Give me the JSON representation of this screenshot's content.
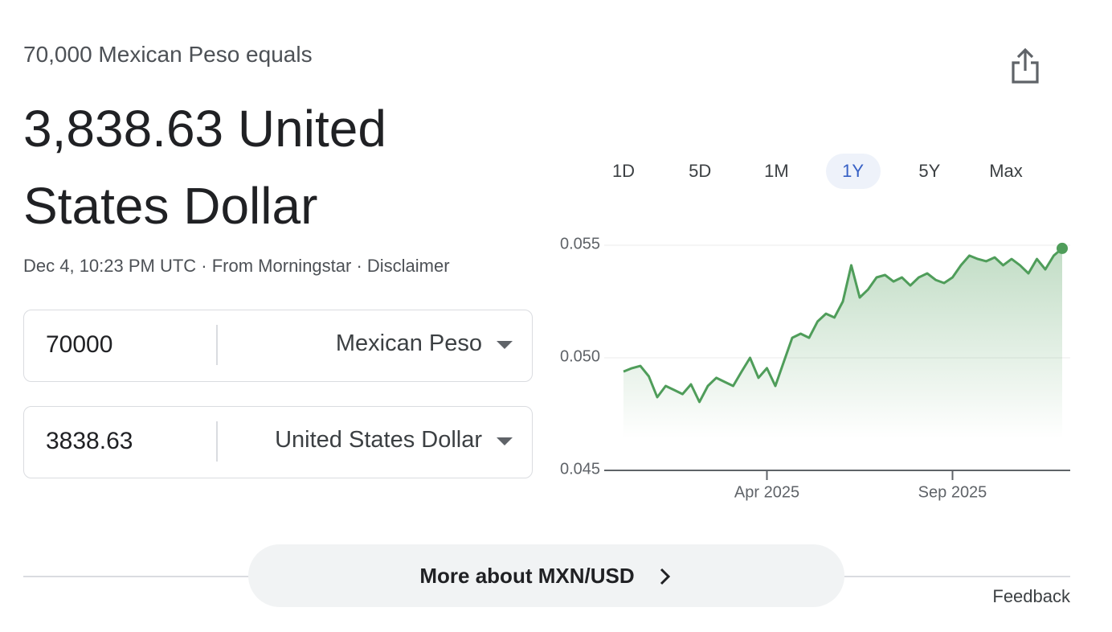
{
  "header": {
    "subtitle": "70,000 Mexican Peso equals",
    "result": "3,838.63 United States Dollar",
    "meta": "Dec 4, 10:23 PM UTC · From Morningstar · Disclaimer"
  },
  "converter": [
    {
      "amount": "70000",
      "currency": "Mexican Peso"
    },
    {
      "amount": "3838.63",
      "currency": "United States Dollar"
    }
  ],
  "ranges": [
    "1D",
    "5D",
    "1M",
    "1Y",
    "5Y",
    "Max"
  ],
  "active_range": 3,
  "more_button": "More about MXN/USD",
  "feedback": "Feedback",
  "chart_data": {
    "type": "line",
    "color": "#4f9d5a",
    "categories": [
      null,
      null,
      null,
      null,
      null,
      null,
      null,
      null,
      null,
      null,
      null,
      null,
      null,
      null,
      null,
      null,
      null,
      "Apr 2025",
      null,
      null,
      null,
      null,
      null,
      null,
      null,
      null,
      null,
      null,
      null,
      null,
      null,
      null,
      null,
      null,
      null,
      null,
      null,
      null,
      null,
      "Sep 2025",
      null,
      null,
      null,
      null,
      null,
      null,
      null,
      null,
      null,
      null,
      null,
      null,
      null
    ],
    "values": [
      0.04939,
      0.04954,
      0.04964,
      0.04918,
      0.04825,
      0.04875,
      0.04857,
      0.04839,
      0.04882,
      0.04804,
      0.04875,
      0.04911,
      0.04893,
      0.04875,
      0.04939,
      0.05,
      0.04911,
      0.04954,
      0.04875,
      0.04982,
      0.05089,
      0.05107,
      0.05089,
      0.05161,
      0.05196,
      0.05179,
      0.0525,
      0.05411,
      0.05268,
      0.05304,
      0.05357,
      0.05368,
      0.05339,
      0.05357,
      0.05321,
      0.05357,
      0.05375,
      0.05346,
      0.05332,
      0.05357,
      0.05411,
      0.05454,
      0.05439,
      0.05429,
      0.05446,
      0.05411,
      0.05439,
      0.05411,
      0.05375,
      0.05439,
      0.05393,
      0.05454,
      0.05486
    ],
    "ylim": [
      0.045,
      0.056
    ],
    "yticks": [
      0.045,
      {
        "value": 0.05,
        "label": "0.050"
      },
      0.055
    ],
    "grid": true
  }
}
